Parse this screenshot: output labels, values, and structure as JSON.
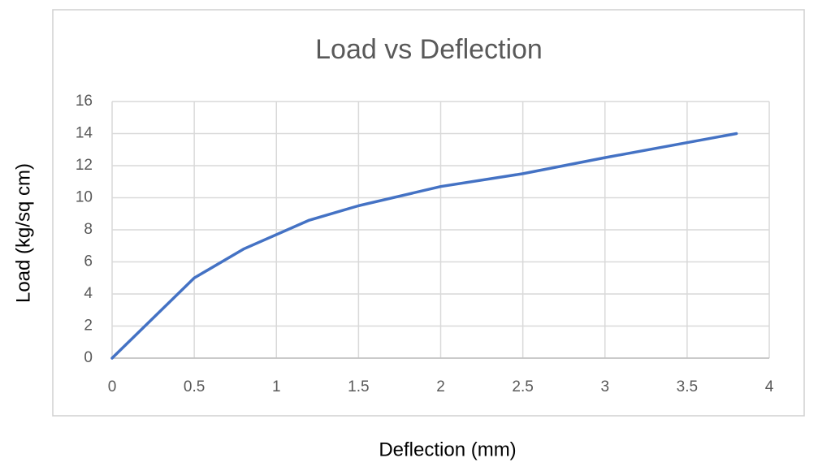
{
  "chart_data": {
    "type": "line",
    "title": "Load vs Deflection",
    "x_label": "Deflection (mm)",
    "y_label": "Load (kg/sq cm)",
    "x": [
      0,
      0.5,
      0.8,
      1.2,
      1.5,
      2,
      2.5,
      3,
      3.8
    ],
    "series": [
      {
        "name": "Load",
        "color": "#4472c4",
        "values": [
          0,
          5,
          6.8,
          8.6,
          9.5,
          10.7,
          11.5,
          12.5,
          14
        ]
      }
    ],
    "xlim": [
      0,
      4
    ],
    "xticks": [
      0,
      0.5,
      1,
      1.5,
      2,
      2.5,
      3,
      3.5,
      4
    ],
    "ylim": [
      0,
      16
    ],
    "yticks": [
      0,
      2,
      4,
      6,
      8,
      10,
      12,
      14,
      16
    ],
    "grid": true
  }
}
